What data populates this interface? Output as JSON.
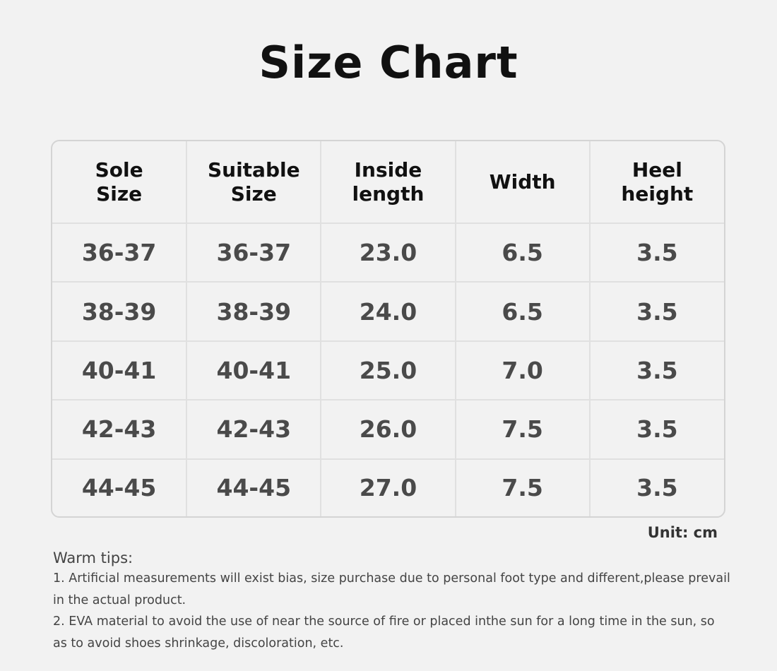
{
  "title": "Size Chart",
  "table": {
    "headers": [
      [
        "Sole",
        "Size"
      ],
      [
        "Suitable",
        "Size"
      ],
      [
        "Inside",
        "length"
      ],
      [
        "Width"
      ],
      [
        "Heel",
        "height"
      ]
    ],
    "rows": [
      [
        "36-37",
        "36-37",
        "23.0",
        "6.5",
        "3.5"
      ],
      [
        "38-39",
        "38-39",
        "24.0",
        "6.5",
        "3.5"
      ],
      [
        "40-41",
        "40-41",
        "25.0",
        "7.0",
        "3.5"
      ],
      [
        "42-43",
        "42-43",
        "26.0",
        "7.5",
        "3.5"
      ],
      [
        "44-45",
        "44-45",
        "27.0",
        "7.5",
        "3.5"
      ]
    ]
  },
  "unit": "Unit: cm",
  "tips": {
    "heading": "Warm tips:",
    "items": [
      "1. Artificial measurements will exist bias, size purchase due to personal foot type and different,please prevail in the actual product.",
      "2. EVA material to avoid the use of near the source of fire or placed inthe sun for a long time in the sun, so as to avoid shoes shrinkage, discoloration, etc."
    ]
  }
}
